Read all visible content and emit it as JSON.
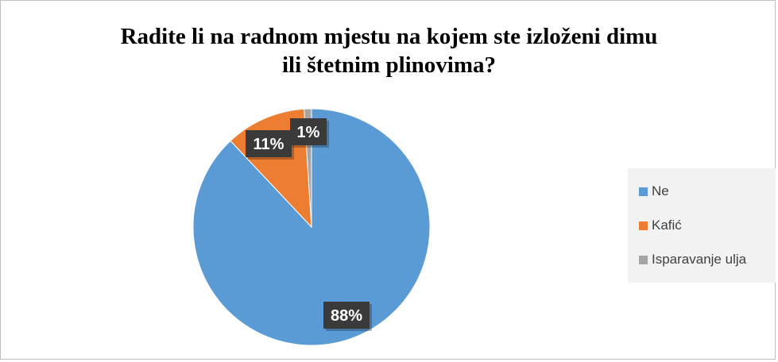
{
  "chart_data": {
    "type": "pie",
    "title_line1": "Radite li na radnom mjestu na kojem ste izloženi dimu",
    "title_line2": "ili štetnim plinovima?",
    "slices": [
      {
        "label": "Ne",
        "value": 88,
        "display": "88%",
        "color": "#5b9bd5"
      },
      {
        "label": "Kafić",
        "value": 11,
        "display": "11%",
        "color": "#ed7d31"
      },
      {
        "label": "Isparavanje ulja",
        "value": 1,
        "display": "1%",
        "color": "#a5a5a5"
      }
    ],
    "legend_position": "right"
  }
}
